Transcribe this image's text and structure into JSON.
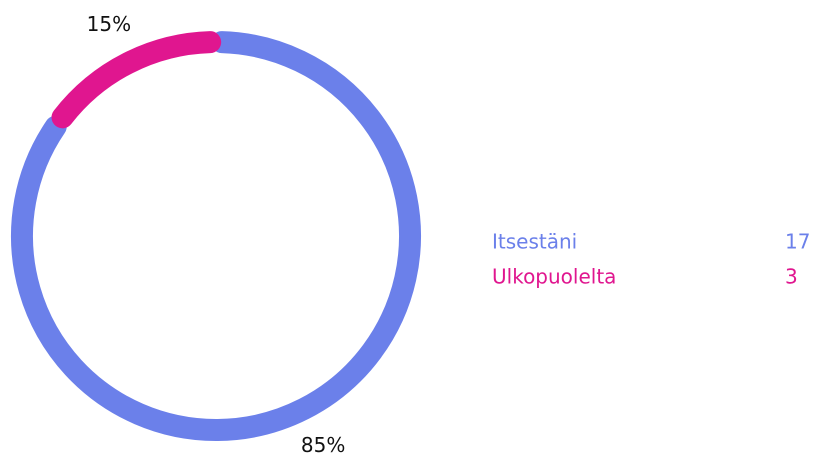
{
  "chart_data": {
    "type": "donut",
    "categories": [
      "Itsestäni",
      "Ulkopuolelta"
    ],
    "values": [
      85,
      15
    ],
    "value_labels": [
      "85%",
      "15%"
    ],
    "counts": [
      17,
      3
    ],
    "colors": [
      "#6b80ea",
      "#e0168f"
    ]
  }
}
